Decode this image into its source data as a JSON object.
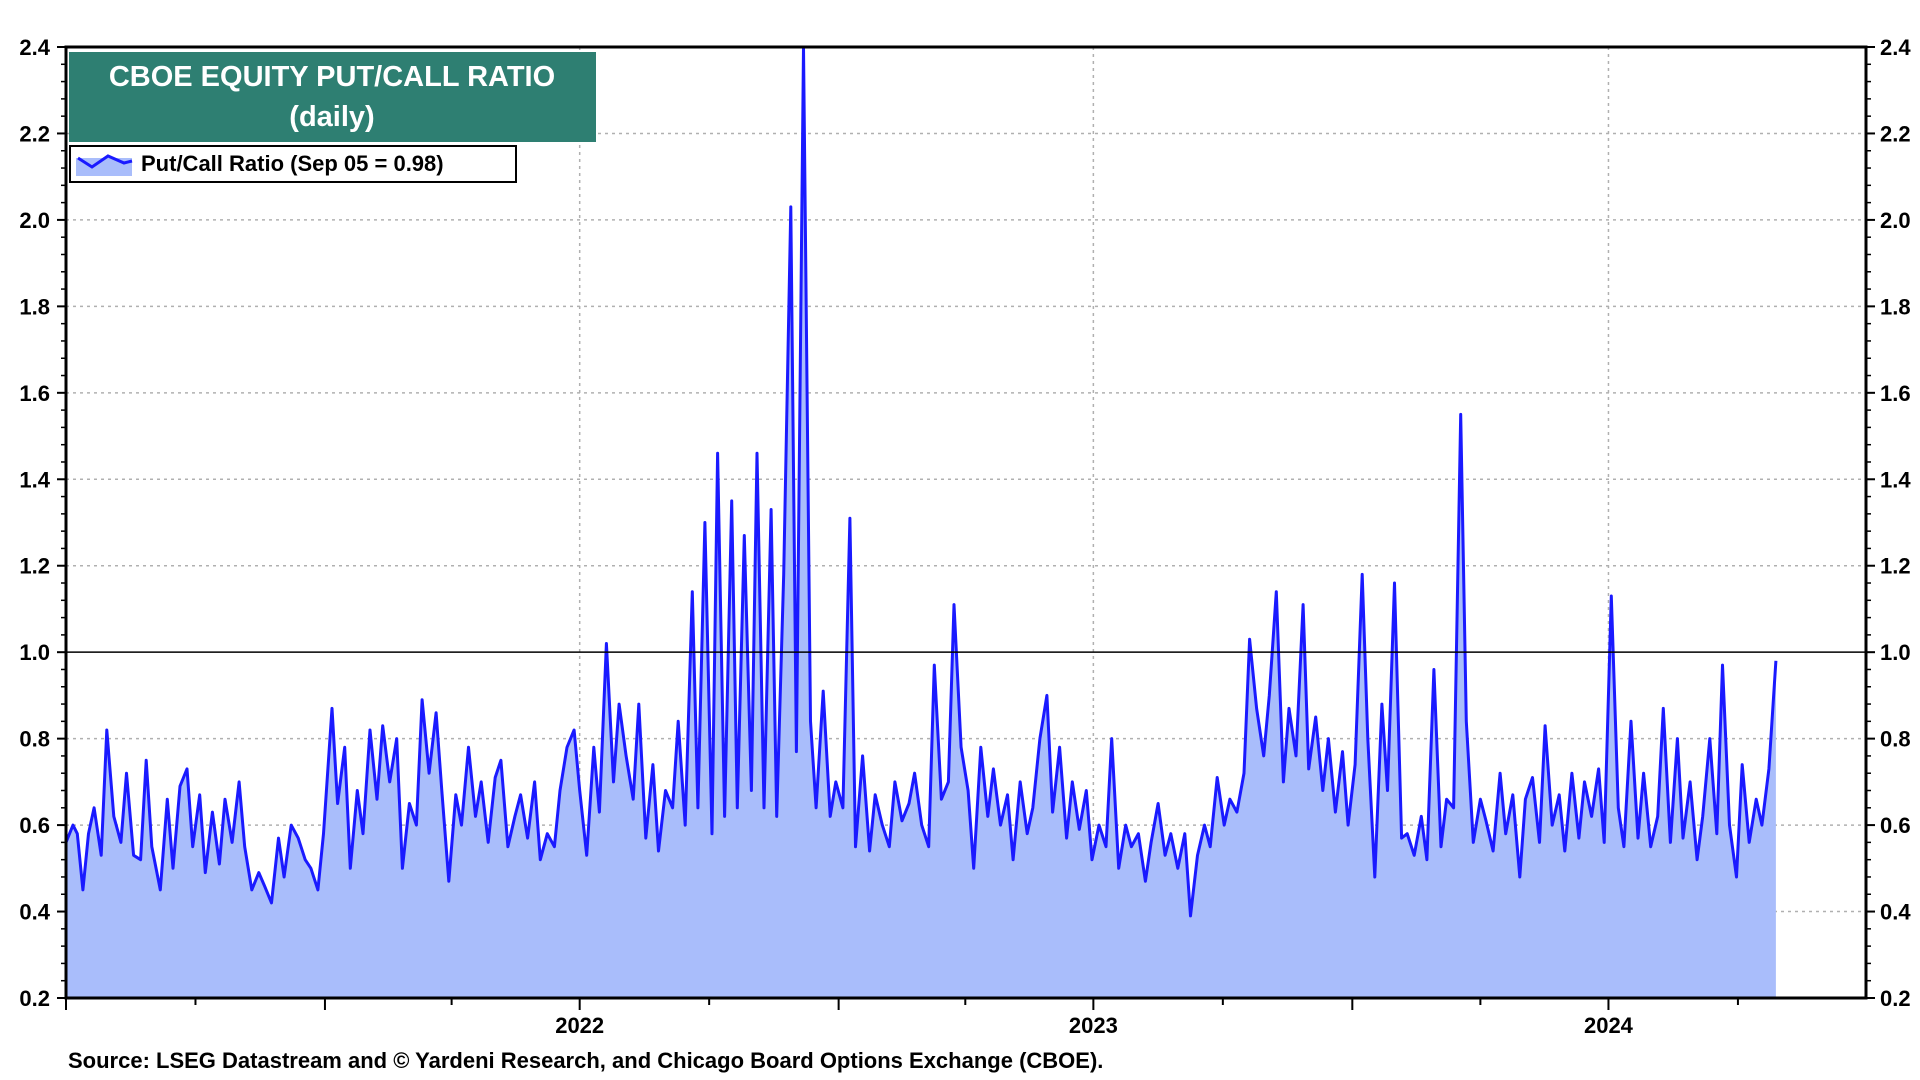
{
  "title": {
    "line1": "CBOE EQUITY PUT/CALL RATIO",
    "line2": "(daily)",
    "background": "#2e7f72"
  },
  "legend": {
    "label": "Put/Call Ratio (Sep 05 = 0.98)",
    "position": "top-left"
  },
  "source": "Source: LSEG Datastream and © Yardeni Research, and Chicago Board Options Exchange (CBOE).",
  "colors": {
    "line": "#1a1aff",
    "fill": "#a9bdfb",
    "reference_line": "#000000",
    "grid": "#b0b0b0"
  },
  "chart_data": {
    "type": "area",
    "x_axis": {
      "labels": [
        "2022",
        "2023",
        "2024"
      ],
      "range": [
        "2021-07-01",
        "2024-12-31"
      ]
    },
    "y_axis": {
      "range": [
        0.2,
        2.4
      ],
      "ticks": [
        "0.2",
        "0.4",
        "0.6",
        "0.8",
        "1.0",
        "1.2",
        "1.4",
        "1.6",
        "1.8",
        "2.0",
        "2.2",
        "2.4"
      ],
      "left_and_right": true
    },
    "grid": true,
    "reference_line": 1.0,
    "series": [
      {
        "name": "Put/Call Ratio",
        "points": [
          [
            "2021-07-01",
            0.56
          ],
          [
            "2021-07-06",
            0.6
          ],
          [
            "2021-07-09",
            0.58
          ],
          [
            "2021-07-13",
            0.45
          ],
          [
            "2021-07-17",
            0.58
          ],
          [
            "2021-07-21",
            0.64
          ],
          [
            "2021-07-26",
            0.53
          ],
          [
            "2021-07-30",
            0.82
          ],
          [
            "2021-08-04",
            0.62
          ],
          [
            "2021-08-09",
            0.56
          ],
          [
            "2021-08-13",
            0.72
          ],
          [
            "2021-08-18",
            0.53
          ],
          [
            "2021-08-23",
            0.52
          ],
          [
            "2021-08-27",
            0.75
          ],
          [
            "2021-08-31",
            0.55
          ],
          [
            "2021-09-06",
            0.45
          ],
          [
            "2021-09-11",
            0.66
          ],
          [
            "2021-09-15",
            0.5
          ],
          [
            "2021-09-20",
            0.69
          ],
          [
            "2021-09-25",
            0.73
          ],
          [
            "2021-09-29",
            0.55
          ],
          [
            "2021-10-04",
            0.67
          ],
          [
            "2021-10-08",
            0.49
          ],
          [
            "2021-10-13",
            0.63
          ],
          [
            "2021-10-18",
            0.51
          ],
          [
            "2021-10-22",
            0.66
          ],
          [
            "2021-10-27",
            0.56
          ],
          [
            "2021-11-01",
            0.7
          ],
          [
            "2021-11-05",
            0.55
          ],
          [
            "2021-11-10",
            0.45
          ],
          [
            "2021-11-15",
            0.49
          ],
          [
            "2021-11-19",
            0.46
          ],
          [
            "2021-11-24",
            0.42
          ],
          [
            "2021-11-29",
            0.57
          ],
          [
            "2021-12-03",
            0.48
          ],
          [
            "2021-12-08",
            0.6
          ],
          [
            "2021-12-13",
            0.57
          ],
          [
            "2021-12-18",
            0.52
          ],
          [
            "2021-12-22",
            0.5
          ],
          [
            "2021-12-27",
            0.45
          ],
          [
            "2021-12-31",
            0.58
          ],
          [
            "2022-01-06",
            0.87
          ],
          [
            "2022-01-10",
            0.65
          ],
          [
            "2022-01-15",
            0.78
          ],
          [
            "2022-01-19",
            0.5
          ],
          [
            "2022-01-24",
            0.68
          ],
          [
            "2022-01-28",
            0.58
          ],
          [
            "2022-02-02",
            0.82
          ],
          [
            "2022-02-07",
            0.66
          ],
          [
            "2022-02-11",
            0.83
          ],
          [
            "2022-02-16",
            0.7
          ],
          [
            "2022-02-21",
            0.8
          ],
          [
            "2022-02-25",
            0.5
          ],
          [
            "2022-03-02",
            0.65
          ],
          [
            "2022-03-07",
            0.6
          ],
          [
            "2022-03-11",
            0.89
          ],
          [
            "2022-03-16",
            0.72
          ],
          [
            "2022-03-21",
            0.86
          ],
          [
            "2022-03-25",
            0.68
          ],
          [
            "2022-03-30",
            0.47
          ],
          [
            "2022-04-04",
            0.67
          ],
          [
            "2022-04-08",
            0.6
          ],
          [
            "2022-04-13",
            0.78
          ],
          [
            "2022-04-18",
            0.62
          ],
          [
            "2022-04-22",
            0.7
          ],
          [
            "2022-04-27",
            0.56
          ],
          [
            "2022-05-02",
            0.71
          ],
          [
            "2022-05-06",
            0.75
          ],
          [
            "2022-05-11",
            0.55
          ],
          [
            "2022-05-16",
            0.62
          ],
          [
            "2022-05-20",
            0.67
          ],
          [
            "2022-05-25",
            0.57
          ],
          [
            "2022-05-30",
            0.7
          ],
          [
            "2022-06-03",
            0.52
          ],
          [
            "2022-06-08",
            0.58
          ],
          [
            "2022-06-13",
            0.55
          ],
          [
            "2022-06-17",
            0.68
          ],
          [
            "2022-06-22",
            0.78
          ],
          [
            "2022-06-27",
            0.82
          ],
          [
            "2022-07-01",
            0.68
          ],
          [
            "2022-07-06",
            0.53
          ],
          [
            "2022-07-11",
            0.78
          ],
          [
            "2022-07-15",
            0.63
          ],
          [
            "2022-07-20",
            1.02
          ],
          [
            "2022-07-25",
            0.7
          ],
          [
            "2022-07-29",
            0.88
          ],
          [
            "2022-08-03",
            0.76
          ],
          [
            "2022-08-08",
            0.66
          ],
          [
            "2022-08-12",
            0.88
          ],
          [
            "2022-08-17",
            0.57
          ],
          [
            "2022-08-22",
            0.74
          ],
          [
            "2022-08-26",
            0.54
          ],
          [
            "2022-08-31",
            0.68
          ],
          [
            "2022-09-05",
            0.64
          ],
          [
            "2022-09-09",
            0.84
          ],
          [
            "2022-09-14",
            0.6
          ],
          [
            "2022-09-19",
            1.14
          ],
          [
            "2022-09-23",
            0.64
          ],
          [
            "2022-09-28",
            1.3
          ],
          [
            "2022-10-03",
            0.58
          ],
          [
            "2022-10-07",
            1.46
          ],
          [
            "2022-10-12",
            0.62
          ],
          [
            "2022-10-17",
            1.35
          ],
          [
            "2022-10-21",
            0.64
          ],
          [
            "2022-10-26",
            1.27
          ],
          [
            "2022-10-31",
            0.68
          ],
          [
            "2022-11-04",
            1.46
          ],
          [
            "2022-11-09",
            0.64
          ],
          [
            "2022-11-14",
            1.33
          ],
          [
            "2022-11-18",
            0.62
          ],
          [
            "2022-11-23",
            1.18
          ],
          [
            "2022-11-28",
            2.03
          ],
          [
            "2022-12-02",
            0.77
          ],
          [
            "2022-12-07",
            2.45
          ],
          [
            "2022-12-12",
            0.84
          ],
          [
            "2022-12-16",
            0.64
          ],
          [
            "2022-12-21",
            0.91
          ],
          [
            "2022-12-26",
            0.62
          ],
          [
            "2022-12-30",
            0.7
          ],
          [
            "2023-01-04",
            0.64
          ],
          [
            "2023-01-09",
            1.31
          ],
          [
            "2023-01-13",
            0.55
          ],
          [
            "2023-01-18",
            0.76
          ],
          [
            "2023-01-23",
            0.54
          ],
          [
            "2023-01-27",
            0.67
          ],
          [
            "2023-02-01",
            0.6
          ],
          [
            "2023-02-06",
            0.55
          ],
          [
            "2023-02-10",
            0.7
          ],
          [
            "2023-02-15",
            0.61
          ],
          [
            "2023-02-20",
            0.65
          ],
          [
            "2023-02-24",
            0.72
          ],
          [
            "2023-03-01",
            0.6
          ],
          [
            "2023-03-06",
            0.55
          ],
          [
            "2023-03-10",
            0.97
          ],
          [
            "2023-03-15",
            0.66
          ],
          [
            "2023-03-20",
            0.7
          ],
          [
            "2023-03-24",
            1.11
          ],
          [
            "2023-03-29",
            0.78
          ],
          [
            "2023-04-03",
            0.68
          ],
          [
            "2023-04-07",
            0.5
          ],
          [
            "2023-04-12",
            0.78
          ],
          [
            "2023-04-17",
            0.62
          ],
          [
            "2023-04-21",
            0.73
          ],
          [
            "2023-04-26",
            0.6
          ],
          [
            "2023-05-01",
            0.67
          ],
          [
            "2023-05-05",
            0.52
          ],
          [
            "2023-05-10",
            0.7
          ],
          [
            "2023-05-15",
            0.58
          ],
          [
            "2023-05-19",
            0.64
          ],
          [
            "2023-05-24",
            0.8
          ],
          [
            "2023-05-29",
            0.9
          ],
          [
            "2023-06-02",
            0.63
          ],
          [
            "2023-06-07",
            0.78
          ],
          [
            "2023-06-12",
            0.57
          ],
          [
            "2023-06-16",
            0.7
          ],
          [
            "2023-06-21",
            0.59
          ],
          [
            "2023-06-26",
            0.68
          ],
          [
            "2023-06-30",
            0.52
          ],
          [
            "2023-07-05",
            0.6
          ],
          [
            "2023-07-10",
            0.55
          ],
          [
            "2023-07-14",
            0.8
          ],
          [
            "2023-07-19",
            0.5
          ],
          [
            "2023-07-24",
            0.6
          ],
          [
            "2023-07-28",
            0.55
          ],
          [
            "2023-08-02",
            0.58
          ],
          [
            "2023-08-07",
            0.47
          ],
          [
            "2023-08-11",
            0.56
          ],
          [
            "2023-08-16",
            0.65
          ],
          [
            "2023-08-21",
            0.53
          ],
          [
            "2023-08-25",
            0.58
          ],
          [
            "2023-08-30",
            0.5
          ],
          [
            "2023-09-04",
            0.58
          ],
          [
            "2023-09-08",
            0.39
          ],
          [
            "2023-09-13",
            0.53
          ],
          [
            "2023-09-18",
            0.6
          ],
          [
            "2023-09-22",
            0.55
          ],
          [
            "2023-09-27",
            0.71
          ],
          [
            "2023-10-02",
            0.6
          ],
          [
            "2023-10-06",
            0.66
          ],
          [
            "2023-10-11",
            0.63
          ],
          [
            "2023-10-16",
            0.72
          ],
          [
            "2023-10-20",
            1.03
          ],
          [
            "2023-10-25",
            0.87
          ],
          [
            "2023-10-30",
            0.76
          ],
          [
            "2023-11-03",
            0.9
          ],
          [
            "2023-11-08",
            1.14
          ],
          [
            "2023-11-13",
            0.7
          ],
          [
            "2023-11-17",
            0.87
          ],
          [
            "2023-11-22",
            0.76
          ],
          [
            "2023-11-27",
            1.11
          ],
          [
            "2023-12-01",
            0.73
          ],
          [
            "2023-12-06",
            0.85
          ],
          [
            "2023-12-11",
            0.68
          ],
          [
            "2023-12-15",
            0.8
          ],
          [
            "2023-12-20",
            0.63
          ],
          [
            "2023-12-25",
            0.77
          ],
          [
            "2023-12-29",
            0.6
          ],
          [
            "2024-01-03",
            0.74
          ],
          [
            "2024-01-08",
            1.18
          ],
          [
            "2024-01-12",
            0.8
          ],
          [
            "2024-01-17",
            0.48
          ],
          [
            "2024-01-22",
            0.88
          ],
          [
            "2024-01-26",
            0.68
          ],
          [
            "2024-01-31",
            1.16
          ],
          [
            "2024-02-05",
            0.57
          ],
          [
            "2024-02-09",
            0.58
          ],
          [
            "2024-02-14",
            0.53
          ],
          [
            "2024-02-19",
            0.62
          ],
          [
            "2024-02-23",
            0.52
          ],
          [
            "2024-02-28",
            0.96
          ],
          [
            "2024-03-04",
            0.55
          ],
          [
            "2024-03-08",
            0.66
          ],
          [
            "2024-03-13",
            0.64
          ],
          [
            "2024-03-18",
            1.55
          ],
          [
            "2024-03-22",
            0.84
          ],
          [
            "2024-03-27",
            0.56
          ],
          [
            "2024-04-01",
            0.66
          ],
          [
            "2024-04-05",
            0.61
          ],
          [
            "2024-04-10",
            0.54
          ],
          [
            "2024-04-15",
            0.72
          ],
          [
            "2024-04-19",
            0.58
          ],
          [
            "2024-04-24",
            0.67
          ],
          [
            "2024-04-29",
            0.48
          ],
          [
            "2024-05-03",
            0.66
          ],
          [
            "2024-05-08",
            0.71
          ],
          [
            "2024-05-13",
            0.56
          ],
          [
            "2024-05-17",
            0.83
          ],
          [
            "2024-05-22",
            0.6
          ],
          [
            "2024-05-27",
            0.67
          ],
          [
            "2024-05-31",
            0.54
          ],
          [
            "2024-06-05",
            0.72
          ],
          [
            "2024-06-10",
            0.57
          ],
          [
            "2024-06-14",
            0.7
          ],
          [
            "2024-06-19",
            0.62
          ],
          [
            "2024-06-24",
            0.73
          ],
          [
            "2024-06-28",
            0.56
          ],
          [
            "2024-07-03",
            1.13
          ],
          [
            "2024-07-08",
            0.64
          ],
          [
            "2024-07-12",
            0.55
          ],
          [
            "2024-07-17",
            0.84
          ],
          [
            "2024-07-22",
            0.57
          ],
          [
            "2024-07-26",
            0.72
          ],
          [
            "2024-07-31",
            0.55
          ],
          [
            "2024-08-05",
            0.62
          ],
          [
            "2024-08-09",
            0.87
          ],
          [
            "2024-08-14",
            0.56
          ],
          [
            "2024-08-19",
            0.8
          ],
          [
            "2024-08-23",
            0.57
          ],
          [
            "2024-08-28",
            0.7
          ],
          [
            "2024-09-02",
            0.52
          ],
          [
            "2024-09-06",
            0.62
          ],
          [
            "2024-09-11",
            0.8
          ],
          [
            "2024-09-16",
            0.58
          ],
          [
            "2024-09-20",
            0.97
          ],
          [
            "2024-09-25",
            0.6
          ],
          [
            "2024-09-30",
            0.48
          ],
          [
            "2024-10-04",
            0.74
          ],
          [
            "2024-10-09",
            0.56
          ],
          [
            "2024-10-14",
            0.66
          ],
          [
            "2024-10-18",
            0.6
          ],
          [
            "2024-10-23",
            0.73
          ],
          [
            "2024-10-28",
            0.98
          ]
        ]
      }
    ]
  }
}
